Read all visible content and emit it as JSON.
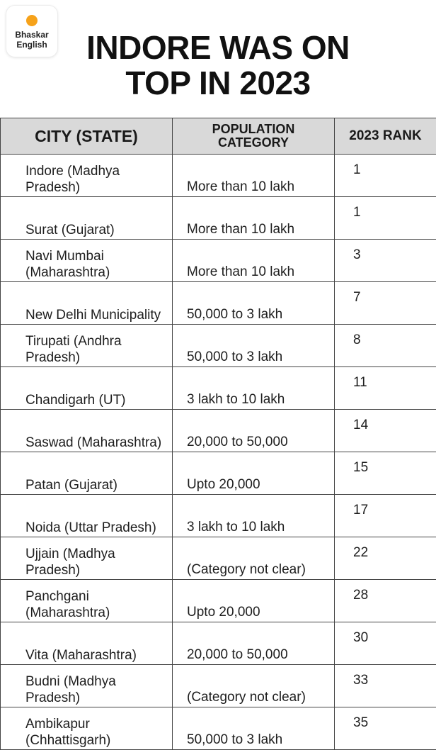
{
  "brand": {
    "line1": "Bhaskar",
    "line2": "English",
    "dot_color": "#f6a21a"
  },
  "headline": {
    "line1": "INDORE WAS ON",
    "line2": "TOP IN 2023"
  },
  "table": {
    "headers": {
      "city": "CITY (STATE)",
      "population_line1": "POPULATION",
      "population_line2": "CATEGORY",
      "rank": "2023 RANK"
    },
    "rows": [
      {
        "city": "Indore (Madhya Pradesh)",
        "population": "More than 10 lakh",
        "rank": "1"
      },
      {
        "city": "Surat (Gujarat)",
        "population": "More than 10 lakh",
        "rank": "1"
      },
      {
        "city": "Navi Mumbai (Maharashtra)",
        "population": "More than 10 lakh",
        "rank": "3"
      },
      {
        "city": "New Delhi Municipality",
        "population": "50,000 to 3 lakh",
        "rank": "7"
      },
      {
        "city": "Tirupati (Andhra Pradesh)",
        "population": "50,000 to 3 lakh",
        "rank": "8"
      },
      {
        "city": "Chandigarh (UT)",
        "population": "3 lakh to 10 lakh",
        "rank": "11"
      },
      {
        "city": "Saswad (Maharashtra)",
        "population": "20,000 to 50,000",
        "rank": "14"
      },
      {
        "city": "Patan (Gujarat)",
        "population": "Upto 20,000",
        "rank": "15"
      },
      {
        "city": "Noida (Uttar Pradesh)",
        "population": "3 lakh to 10 lakh",
        "rank": "17"
      },
      {
        "city": "Ujjain (Madhya Pradesh)",
        "population": "(Category not clear)",
        "rank": "22"
      },
      {
        "city": "Panchgani (Maharashtra)",
        "population": "Upto 20,000",
        "rank": "28"
      },
      {
        "city": "Vita (Maharashtra)",
        "population": "20,000 to 50,000",
        "rank": "30"
      },
      {
        "city": "Budni (Madhya Pradesh)",
        "population": "(Category not clear)",
        "rank": "33"
      },
      {
        "city": "Ambikapur (Chhattisgarh)",
        "population": "50,000 to 3 lakh",
        "rank": "35"
      }
    ]
  }
}
